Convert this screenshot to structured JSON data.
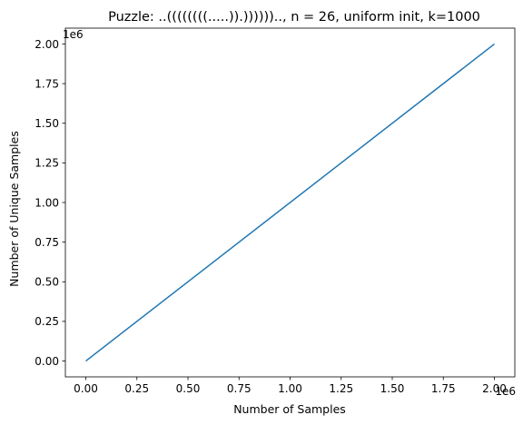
{
  "chart_data": {
    "type": "line",
    "title": "Puzzle: ..((((((((.....)).))))))..,  n = 26, uniform init, k=1000",
    "xlabel": "Number of Samples",
    "ylabel": "Number of Unique Samples",
    "x_offset_text": "1e6",
    "y_offset_text": "1e6",
    "xlim": [
      -100000,
      2100000
    ],
    "ylim": [
      -100000,
      2100000
    ],
    "xticks": [
      0,
      250000,
      500000,
      750000,
      1000000,
      1250000,
      1500000,
      1750000,
      2000000
    ],
    "xtick_labels": [
      "0.00",
      "0.25",
      "0.50",
      "0.75",
      "1.00",
      "1.25",
      "1.50",
      "1.75",
      "2.00"
    ],
    "yticks": [
      0,
      250000,
      500000,
      750000,
      1000000,
      1250000,
      1500000,
      1750000,
      2000000
    ],
    "ytick_labels": [
      "0.00",
      "0.25",
      "0.50",
      "0.75",
      "1.00",
      "1.25",
      "1.50",
      "1.75",
      "2.00"
    ],
    "grid": false,
    "series": [
      {
        "color": "#1f77b4",
        "x": [
          0,
          2000000
        ],
        "y": [
          0,
          2000000
        ]
      }
    ]
  }
}
